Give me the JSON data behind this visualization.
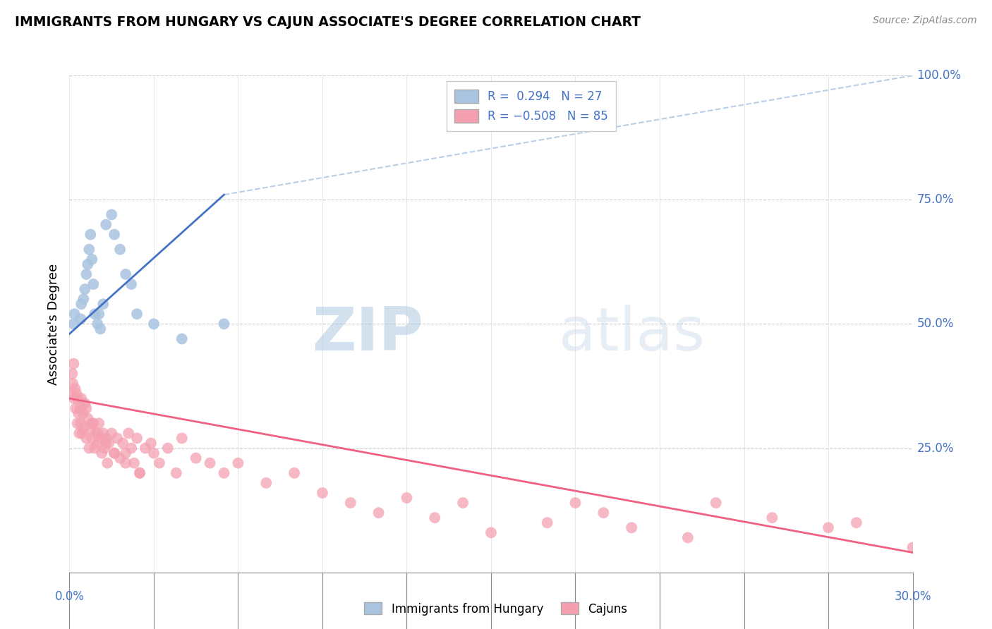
{
  "title": "IMMIGRANTS FROM HUNGARY VS CAJUN ASSOCIATE'S DEGREE CORRELATION CHART",
  "source": "Source: ZipAtlas.com",
  "ylabel_label": "Associate's Degree",
  "legend_label1": "Immigrants from Hungary",
  "legend_label2": "Cajuns",
  "watermark_zip": "ZIP",
  "watermark_atlas": "atlas",
  "blue_color": "#a8c4e0",
  "blue_line_color": "#4472c4",
  "blue_dash_color": "#a8c4e0",
  "pink_color": "#f4a0b0",
  "pink_line_color": "#f06080",
  "xmin": 0.0,
  "xmax": 30.0,
  "ymin": 0.0,
  "ymax": 100.0,
  "blue_scatter_x": [
    0.15,
    0.18,
    0.4,
    0.42,
    0.5,
    0.55,
    0.6,
    0.65,
    0.7,
    0.75,
    0.8,
    0.85,
    0.9,
    1.0,
    1.05,
    1.1,
    1.2,
    1.3,
    1.5,
    1.6,
    1.8,
    2.0,
    2.2,
    2.4,
    3.0,
    4.0,
    5.5
  ],
  "blue_scatter_y": [
    50,
    52,
    51,
    54,
    55,
    57,
    60,
    62,
    65,
    68,
    63,
    58,
    52,
    50,
    52,
    49,
    54,
    70,
    72,
    68,
    65,
    60,
    58,
    52,
    50,
    47,
    50
  ],
  "pink_scatter_x": [
    0.05,
    0.1,
    0.12,
    0.15,
    0.17,
    0.2,
    0.22,
    0.25,
    0.28,
    0.3,
    0.32,
    0.35,
    0.38,
    0.4,
    0.42,
    0.45,
    0.48,
    0.5,
    0.55,
    0.6,
    0.65,
    0.7,
    0.75,
    0.8,
    0.85,
    0.9,
    0.95,
    1.0,
    1.05,
    1.1,
    1.15,
    1.2,
    1.25,
    1.3,
    1.35,
    1.4,
    1.5,
    1.6,
    1.7,
    1.8,
    1.9,
    2.0,
    2.1,
    2.2,
    2.3,
    2.4,
    2.5,
    2.7,
    2.9,
    3.0,
    3.2,
    3.5,
    3.8,
    4.0,
    4.5,
    5.0,
    5.5,
    6.0,
    7.0,
    8.0,
    9.0,
    10.0,
    11.0,
    12.0,
    13.0,
    14.0,
    15.0,
    17.0,
    18.0,
    19.0,
    20.0,
    22.0,
    23.0,
    25.0,
    27.0,
    28.0,
    30.0,
    0.6,
    0.8,
    1.0,
    1.3,
    1.6,
    2.0,
    2.5
  ],
  "pink_scatter_y": [
    36,
    40,
    38,
    42,
    35,
    37,
    33,
    36,
    30,
    35,
    32,
    28,
    33,
    30,
    35,
    28,
    32,
    29,
    34,
    27,
    31,
    25,
    29,
    27,
    30,
    25,
    28,
    26,
    30,
    27,
    24,
    28,
    25,
    27,
    22,
    26,
    28,
    24,
    27,
    23,
    26,
    24,
    28,
    25,
    22,
    27,
    20,
    25,
    26,
    24,
    22,
    25,
    20,
    27,
    23,
    22,
    20,
    22,
    18,
    20,
    16,
    14,
    12,
    15,
    11,
    14,
    8,
    10,
    14,
    12,
    9,
    7,
    14,
    11,
    9,
    10,
    5,
    33,
    30,
    28,
    26,
    24,
    22,
    20
  ],
  "blue_line_x0": 0.0,
  "blue_line_y0": 48.0,
  "blue_line_x1": 5.5,
  "blue_line_y1": 76.0,
  "blue_dash_x0": 5.5,
  "blue_dash_y0": 76.0,
  "blue_dash_x1": 30.0,
  "blue_dash_y1": 100.0,
  "pink_line_x0": 0.0,
  "pink_line_y0": 35.0,
  "pink_line_x1": 30.0,
  "pink_line_y1": 4.0
}
